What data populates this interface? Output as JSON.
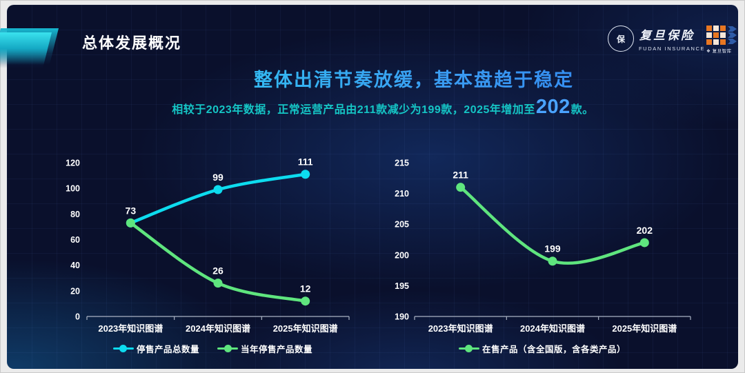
{
  "slide_title": "总体发展概况",
  "logos": {
    "seal_char": "保",
    "brand_cn": "复旦保险",
    "brand_en": "FUDAN INSURANCE",
    "thinktank_label": "❖ 复旦智库"
  },
  "headline": "整体出清节奏放缓，基本盘趋于稳定",
  "subtitle": {
    "prefix": "相较于2023年数据，正常运营产品由211款减少为199款，2025年增加至",
    "highlight": "202",
    "suffix": "款。"
  },
  "colors": {
    "headline_gradient_from": "#2ed2f2",
    "headline_gradient_to": "#2e7bf0",
    "subtitle_text": "#15c5c5",
    "subtitle_highlight": "#4aa3ff",
    "series_cyan": "#0ddcef",
    "series_green": "#5fe57e",
    "axis_line": "#aab3c4",
    "slide_background": "#0a102c"
  },
  "chart_data": [
    {
      "type": "line",
      "title": "",
      "categories": [
        "2023年知识图谱",
        "2024年知识图谱",
        "2025年知识图谱"
      ],
      "series": [
        {
          "name": "停售产品总数量",
          "color": "#0ddcef",
          "values": [
            73,
            99,
            111
          ]
        },
        {
          "name": "当年停售产品数量",
          "color": "#5fe57e",
          "values": [
            73,
            26,
            12
          ]
        }
      ],
      "ylim": [
        0,
        120
      ],
      "y_ticks": [
        0,
        20,
        40,
        60,
        80,
        100,
        120
      ],
      "grid": false,
      "smooth": true,
      "legend_position": "bottom",
      "data_labels": true
    },
    {
      "type": "line",
      "title": "",
      "categories": [
        "2023年知识图谱",
        "2024年知识图谱",
        "2025年知识图谱"
      ],
      "series": [
        {
          "name": "在售产品（含全国版，含各类产品）",
          "color": "#5fe57e",
          "values": [
            211,
            199,
            202
          ]
        }
      ],
      "ylim": [
        190,
        215
      ],
      "y_ticks": [
        190,
        195,
        200,
        205,
        210,
        215
      ],
      "grid": false,
      "smooth": true,
      "legend_position": "bottom",
      "data_labels": true
    }
  ]
}
